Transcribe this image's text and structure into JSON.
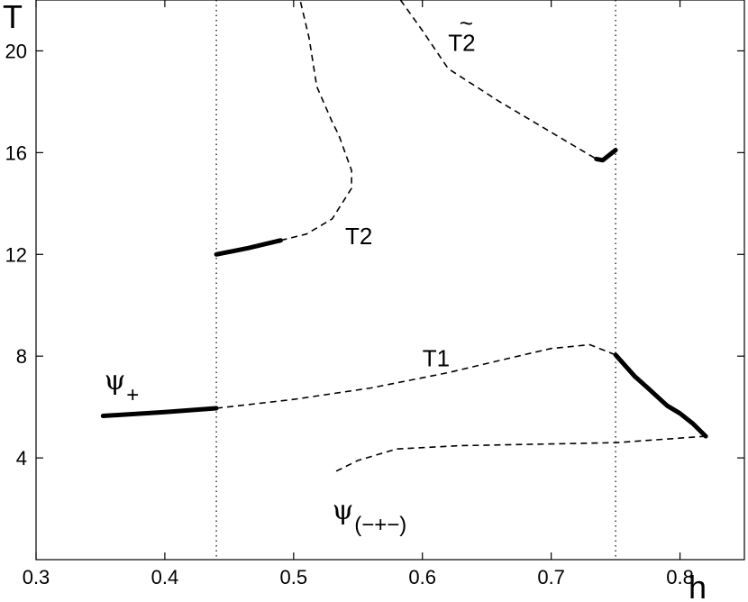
{
  "chart_data": {
    "type": "line",
    "xlabel": "h",
    "ylabel": "T",
    "xlim": [
      0.3,
      0.85
    ],
    "ylim": [
      0,
      22
    ],
    "x_ticks": [
      "0.3",
      "0.4",
      "0.5",
      "0.6",
      "0.7",
      "0.8"
    ],
    "y_ticks": [
      "4",
      "8",
      "12",
      "16",
      "20"
    ],
    "grid": false,
    "legend": "none",
    "vertical_reference_lines": [
      0.44,
      0.75
    ],
    "annotations": [
      {
        "id": "psi-plus",
        "symbol": "ψ",
        "sub": "+",
        "x": 0.353,
        "y": 6.7
      },
      {
        "id": "t1",
        "text": "T1",
        "x": 0.6,
        "y": 7.6
      },
      {
        "id": "t2",
        "text": "T2",
        "x": 0.54,
        "y": 12.4
      },
      {
        "id": "t2-tilde",
        "text": "T2",
        "tilde": "~",
        "x": 0.62,
        "y": 20.0
      },
      {
        "id": "psi-mixed",
        "symbol": "ψ",
        "sub": "(−+−)",
        "x": 0.53,
        "y": 1.6
      }
    ],
    "series": [
      {
        "style": "solid",
        "points": [
          [
            0.352,
            5.65
          ],
          [
            0.4,
            5.8
          ],
          [
            0.44,
            5.95
          ]
        ]
      },
      {
        "style": "dashed",
        "points": [
          [
            0.44,
            5.95
          ],
          [
            0.5,
            6.3
          ],
          [
            0.56,
            6.75
          ],
          [
            0.62,
            7.35
          ],
          [
            0.67,
            7.95
          ],
          [
            0.7,
            8.3
          ],
          [
            0.73,
            8.45
          ],
          [
            0.75,
            8.05
          ]
        ]
      },
      {
        "style": "solid",
        "points": [
          [
            0.75,
            8.05
          ],
          [
            0.765,
            7.2
          ],
          [
            0.775,
            6.75
          ],
          [
            0.79,
            6.05
          ],
          [
            0.8,
            5.75
          ],
          [
            0.81,
            5.35
          ],
          [
            0.82,
            4.85
          ]
        ]
      },
      {
        "style": "dashed",
        "points": [
          [
            0.82,
            4.85
          ],
          [
            0.75,
            4.6
          ],
          [
            0.7,
            4.55
          ],
          [
            0.63,
            4.48
          ],
          [
            0.58,
            4.35
          ],
          [
            0.55,
            3.9
          ],
          [
            0.53,
            3.4
          ]
        ]
      },
      {
        "style": "solid",
        "points": [
          [
            0.44,
            12.0
          ],
          [
            0.465,
            12.25
          ],
          [
            0.49,
            12.55
          ]
        ]
      },
      {
        "style": "dashed",
        "points": [
          [
            0.49,
            12.55
          ],
          [
            0.51,
            12.8
          ],
          [
            0.53,
            13.4
          ],
          [
            0.545,
            14.6
          ],
          [
            0.545,
            15.3
          ],
          [
            0.535,
            16.7
          ],
          [
            0.53,
            17.2
          ],
          [
            0.518,
            18.6
          ],
          [
            0.512,
            20.5
          ],
          [
            0.505,
            22.0
          ]
        ]
      },
      {
        "style": "dashed",
        "points": [
          [
            0.583,
            22.0
          ],
          [
            0.6,
            20.8
          ],
          [
            0.62,
            19.3
          ],
          [
            0.66,
            18.0
          ],
          [
            0.7,
            16.8
          ],
          [
            0.735,
            15.75
          ]
        ]
      },
      {
        "style": "solid",
        "points": [
          [
            0.735,
            15.75
          ],
          [
            0.74,
            15.7
          ],
          [
            0.75,
            16.1
          ]
        ]
      }
    ]
  }
}
